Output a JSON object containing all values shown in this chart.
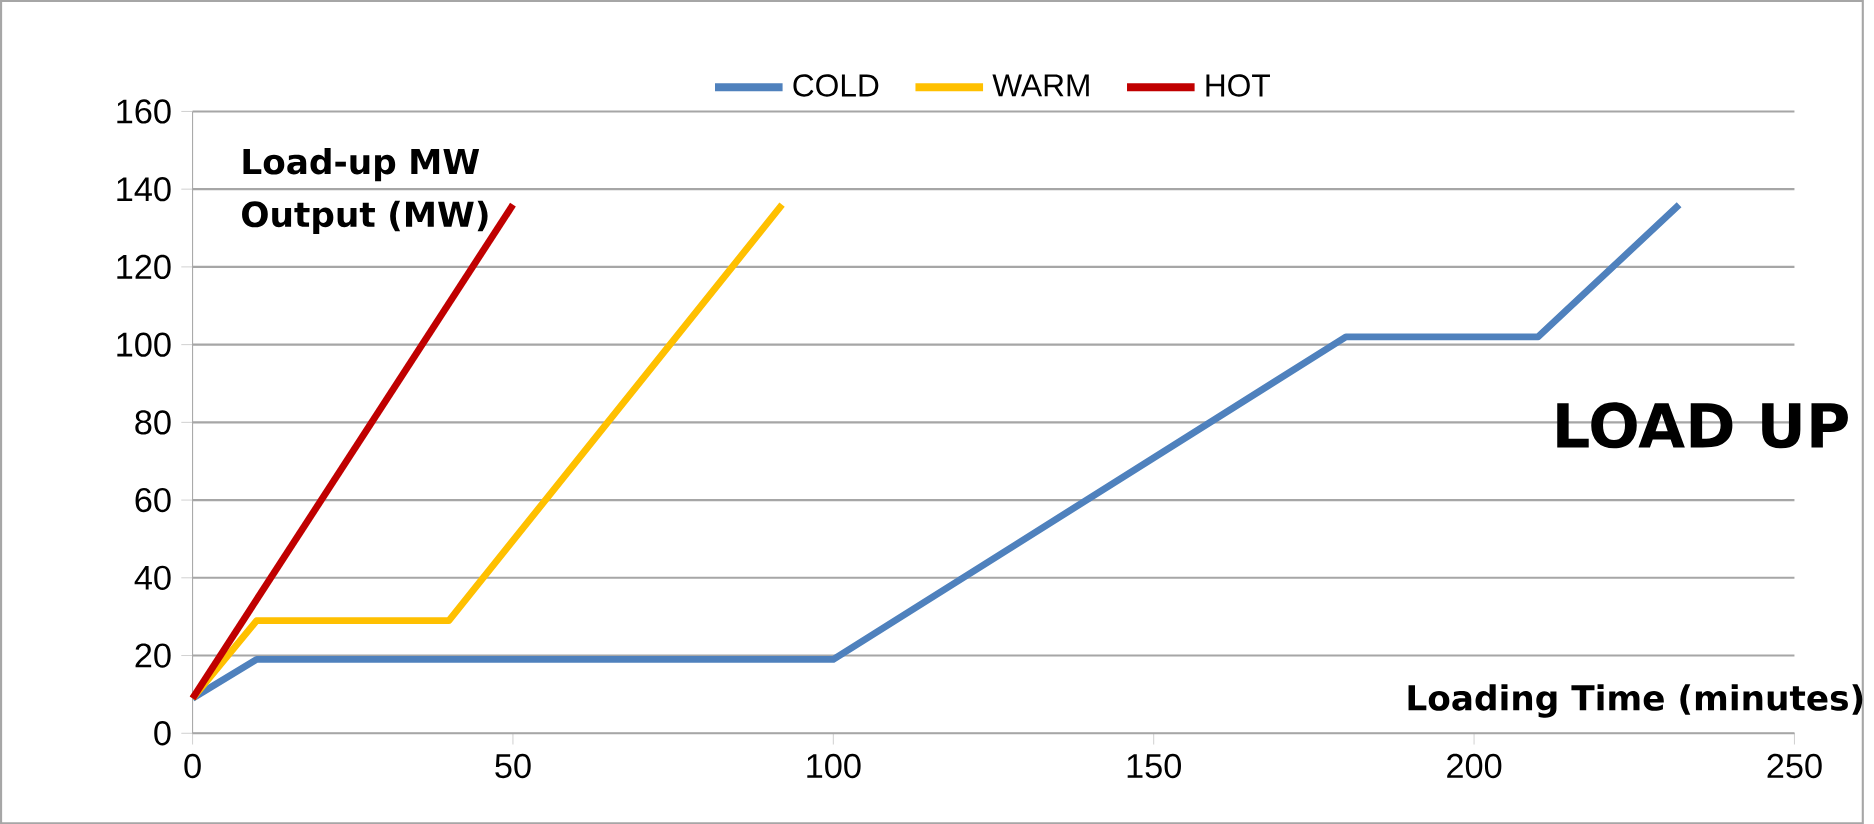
{
  "chart_data": {
    "type": "line",
    "title": "LOAD UP",
    "ylabel": "Load-up MW Output (MW)",
    "xlabel": "Loading Time (minutes)",
    "xlim": [
      0,
      250
    ],
    "xticks": [
      0,
      50,
      100,
      150,
      200,
      250
    ],
    "ylim": [
      0,
      160
    ],
    "yticks": [
      0,
      20,
      40,
      60,
      80,
      100,
      120,
      140,
      160
    ],
    "grid": "y",
    "legend": "top",
    "marker": "none",
    "line_style": "solid",
    "series": [
      {
        "name": "COLD",
        "color": "#4f81bd",
        "x": [
          0,
          10,
          100,
          180,
          210,
          232
        ],
        "values": [
          9,
          19,
          19,
          102,
          102,
          136
        ]
      },
      {
        "name": "WARM",
        "color": "#ffc000",
        "x": [
          0,
          10,
          40,
          92
        ],
        "values": [
          9,
          29,
          29,
          136
        ]
      },
      {
        "name": "HOT",
        "color": "#c00000",
        "x": [
          0,
          50
        ],
        "values": [
          9,
          136
        ]
      }
    ]
  }
}
